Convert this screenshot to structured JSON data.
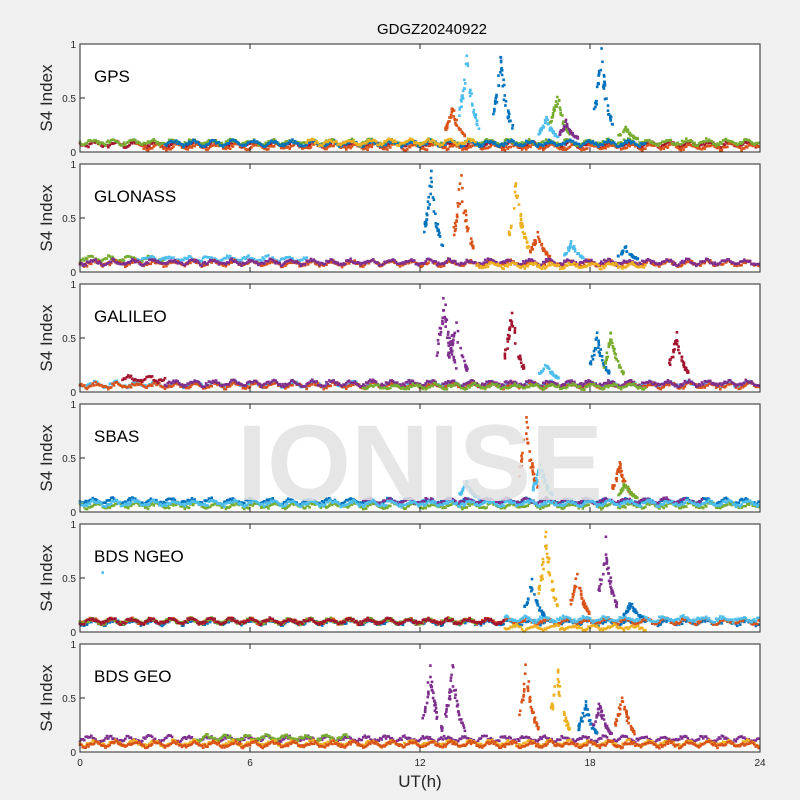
{
  "chart_data": {
    "type": "scatter",
    "title": "GDGZ20240922",
    "xlabel": "UT(h)",
    "ylabel": "S4 Index",
    "xlim": [
      0,
      24
    ],
    "ylim": [
      0,
      1
    ],
    "xticks": [
      "0",
      "6",
      "12",
      "18",
      "24"
    ],
    "yticks": [
      "0",
      "0.5",
      "1"
    ],
    "watermark": "IONISE",
    "colors": {
      "blue": "#0072BD",
      "orange": "#D95319",
      "yellow": "#EDB120",
      "purple": "#7E2F8E",
      "green": "#77AC30",
      "lightblue": "#4DBEEE",
      "red": "#A2142F"
    },
    "panels": [
      {
        "label": "GPS",
        "baseline": [
          {
            "color": "red",
            "from": 0,
            "to": 24,
            "level": 0.07
          },
          {
            "color": "orange",
            "from": 2,
            "to": 24,
            "level": 0.05
          },
          {
            "color": "green",
            "from": 0,
            "to": 24,
            "level": 0.09
          },
          {
            "color": "blue",
            "from": 3,
            "to": 20,
            "level": 0.08
          },
          {
            "color": "yellow",
            "from": 8,
            "to": 14,
            "level": 0.09
          }
        ],
        "bursts": [
          {
            "color": "orange",
            "t": 13.1,
            "peak": 0.45
          },
          {
            "color": "lightblue",
            "t": 13.6,
            "peak": 1.0
          },
          {
            "color": "blue",
            "t": 14.8,
            "peak": 0.95
          },
          {
            "color": "lightblue",
            "t": 16.4,
            "peak": 0.35
          },
          {
            "color": "green",
            "t": 16.8,
            "peak": 0.6
          },
          {
            "color": "purple",
            "t": 17.1,
            "peak": 0.3
          },
          {
            "color": "blue",
            "t": 18.35,
            "peak": 1.0
          },
          {
            "color": "green",
            "t": 19.2,
            "peak": 0.25
          }
        ]
      },
      {
        "label": "GLONASS",
        "baseline": [
          {
            "color": "green",
            "from": 0,
            "to": 3,
            "level": 0.12
          },
          {
            "color": "lightblue",
            "from": 2,
            "to": 8,
            "level": 0.12
          },
          {
            "color": "orange",
            "from": 0,
            "to": 24,
            "level": 0.08
          },
          {
            "color": "purple",
            "from": 0,
            "to": 24,
            "level": 0.09
          },
          {
            "color": "yellow",
            "from": 14,
            "to": 20,
            "level": 0.06
          }
        ],
        "bursts": [
          {
            "color": "blue",
            "t": 12.35,
            "peak": 1.0
          },
          {
            "color": "orange",
            "t": 13.4,
            "peak": 1.0
          },
          {
            "color": "yellow",
            "t": 15.35,
            "peak": 0.95
          },
          {
            "color": "orange",
            "t": 16.1,
            "peak": 0.4
          },
          {
            "color": "lightblue",
            "t": 17.3,
            "peak": 0.3
          },
          {
            "color": "blue",
            "t": 19.2,
            "peak": 0.25
          }
        ]
      },
      {
        "label": "GALILEO",
        "baseline": [
          {
            "color": "lightblue",
            "from": 0,
            "to": 24,
            "level": 0.07
          },
          {
            "color": "orange",
            "from": 0,
            "to": 24,
            "level": 0.06
          },
          {
            "color": "purple",
            "from": 3,
            "to": 24,
            "level": 0.08
          },
          {
            "color": "red",
            "from": 1.5,
            "to": 3,
            "level": 0.12
          },
          {
            "color": "green",
            "from": 10,
            "to": 20,
            "level": 0.05
          }
        ],
        "bursts": [
          {
            "color": "purple",
            "t": 12.8,
            "peak": 1.0
          },
          {
            "color": "purple",
            "t": 13.2,
            "peak": 0.8
          },
          {
            "color": "red",
            "t": 15.2,
            "peak": 0.85
          },
          {
            "color": "lightblue",
            "t": 16.4,
            "peak": 0.3
          },
          {
            "color": "blue",
            "t": 18.2,
            "peak": 0.6
          },
          {
            "color": "green",
            "t": 18.7,
            "peak": 0.6
          },
          {
            "color": "red",
            "t": 21.0,
            "peak": 0.6
          }
        ]
      },
      {
        "label": "SBAS",
        "baseline": [
          {
            "color": "blue",
            "from": 0,
            "to": 24,
            "level": 0.1
          },
          {
            "color": "green",
            "from": 0,
            "to": 24,
            "level": 0.06
          },
          {
            "color": "purple",
            "from": 10,
            "to": 22,
            "level": 0.1
          },
          {
            "color": "lightblue",
            "from": 0,
            "to": 24,
            "level": 0.08
          }
        ],
        "bursts": [
          {
            "color": "lightblue",
            "t": 13.6,
            "peak": 0.3
          },
          {
            "color": "orange",
            "t": 15.7,
            "peak": 0.95
          },
          {
            "color": "lightblue",
            "t": 16.2,
            "peak": 0.5
          },
          {
            "color": "orange",
            "t": 19.0,
            "peak": 0.5
          },
          {
            "color": "green",
            "t": 19.2,
            "peak": 0.3
          }
        ]
      },
      {
        "label": "BDS NGEO",
        "baseline": [
          {
            "color": "blue",
            "from": 0,
            "to": 24,
            "level": 0.09
          },
          {
            "color": "orange",
            "from": 0,
            "to": 24,
            "level": 0.1
          },
          {
            "color": "green",
            "from": 0,
            "to": 14,
            "level": 0.1
          },
          {
            "color": "red",
            "from": 0,
            "to": 15,
            "level": 0.1
          },
          {
            "color": "lightblue",
            "from": 15,
            "to": 24,
            "level": 0.12
          },
          {
            "color": "yellow",
            "from": 15,
            "to": 20,
            "level": 0.04
          }
        ],
        "bursts": [
          {
            "color": "lightblue",
            "t": 0.8,
            "peak": 0.55,
            "single": true
          },
          {
            "color": "blue",
            "t": 15.9,
            "peak": 0.5
          },
          {
            "color": "yellow",
            "t": 16.4,
            "peak": 1.0
          },
          {
            "color": "orange",
            "t": 17.5,
            "peak": 0.6
          },
          {
            "color": "purple",
            "t": 18.5,
            "peak": 0.95
          },
          {
            "color": "blue",
            "t": 19.4,
            "peak": 0.3
          }
        ]
      },
      {
        "label": "BDS GEO",
        "baseline": [
          {
            "color": "purple",
            "from": 0,
            "to": 24,
            "level": 0.12
          },
          {
            "color": "green",
            "from": 4,
            "to": 9.5,
            "level": 0.13
          },
          {
            "color": "yellow",
            "from": 0,
            "to": 24,
            "level": 0.08
          },
          {
            "color": "orange",
            "from": 0,
            "to": 24,
            "level": 0.07
          }
        ],
        "bursts": [
          {
            "color": "purple",
            "t": 12.3,
            "peak": 0.85
          },
          {
            "color": "purple",
            "t": 13.1,
            "peak": 0.85
          },
          {
            "color": "orange",
            "t": 15.7,
            "peak": 0.9
          },
          {
            "color": "yellow",
            "t": 16.8,
            "peak": 0.85
          },
          {
            "color": "blue",
            "t": 17.8,
            "peak": 0.5
          },
          {
            "color": "purple",
            "t": 18.3,
            "peak": 0.5
          },
          {
            "color": "orange",
            "t": 19.1,
            "peak": 0.6
          }
        ]
      }
    ]
  }
}
